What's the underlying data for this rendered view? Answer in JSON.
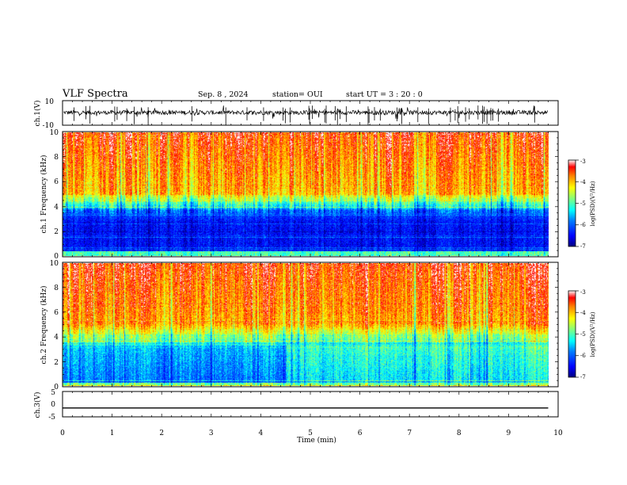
{
  "header": {
    "title": "VLF Spectra",
    "date": "Sep. 8 , 2024",
    "station": "station= OUI",
    "start_ut": "start UT = 3 : 20 : 0"
  },
  "colors": {
    "spectrum": [
      "#00007f",
      "#0000ff",
      "#007fff",
      "#00ffff",
      "#7fff7f",
      "#ffff00",
      "#ff7f00",
      "#ff0000",
      "#7f0000"
    ],
    "waveform": "#000000"
  },
  "chart_data": [
    {
      "type": "line",
      "title": "ch.1(V)",
      "ylabel": "ch.1(V)",
      "ylim": [
        -10,
        10
      ],
      "yticks": [
        "10",
        "-10"
      ],
      "xlim": [
        0,
        10
      ]
    },
    {
      "type": "heatmap",
      "ylabel": "ch.1 Frequency (kHz)",
      "ylim": [
        0,
        10
      ],
      "yticks": [
        "0",
        "2",
        "4",
        "6",
        "8",
        "10"
      ],
      "xlim": [
        0,
        10
      ],
      "colorbar": {
        "label": "log(PSD)(V²/Hz)",
        "range": [
          -7,
          -3
        ],
        "ticks": [
          "-3",
          "-4",
          "-5",
          "-6",
          "-7"
        ]
      }
    },
    {
      "type": "heatmap",
      "ylabel": "ch.2 Frequency (kHz)",
      "ylim": [
        0,
        10
      ],
      "yticks": [
        "0",
        "2",
        "4",
        "6",
        "8",
        "10"
      ],
      "xlim": [
        0,
        10
      ],
      "colorbar": {
        "label": "log(PSD)(V²/Hz)",
        "range": [
          -7,
          -3
        ],
        "ticks": [
          "-3",
          "-4",
          "-5",
          "-6",
          "-7"
        ]
      }
    },
    {
      "type": "line",
      "ylabel": "ch.3(V)",
      "ylim": [
        -5,
        5
      ],
      "yticks": [
        "5",
        "0",
        "-5"
      ],
      "xlim": [
        0,
        10
      ],
      "x": [
        0,
        9.8
      ],
      "y": [
        -1.5,
        -1.5
      ]
    }
  ],
  "xaxis": {
    "label": "Time (min)",
    "ticks": [
      "0",
      "1",
      "2",
      "3",
      "4",
      "5",
      "6",
      "7",
      "8",
      "9",
      "10"
    ]
  }
}
